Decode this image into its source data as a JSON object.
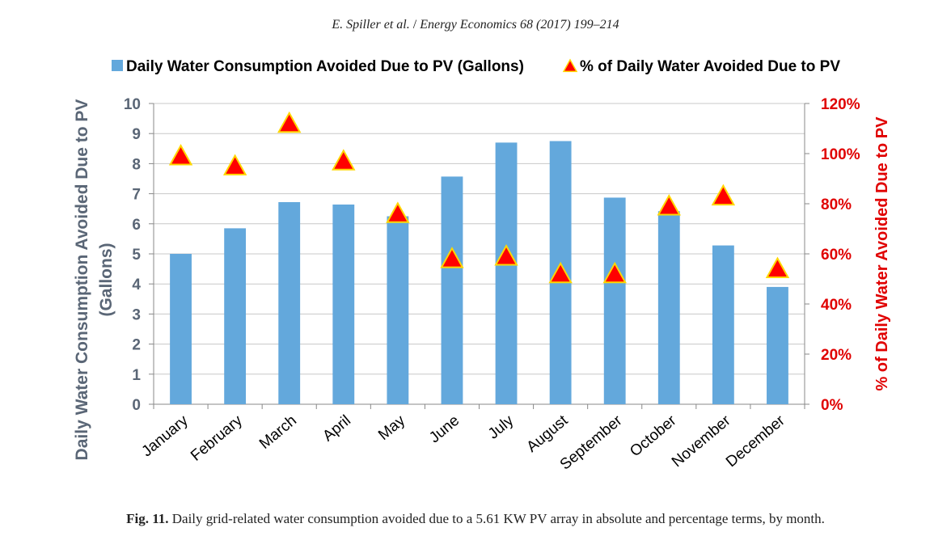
{
  "header": {
    "authors": "E. Spiller et al.",
    "separator": " / ",
    "journal": "Energy Economics 68 (2017) 199–214"
  },
  "caption": {
    "label": "Fig. 11.",
    "text": " Daily grid-related water consumption avoided due to a 5.61 KW PV array in absolute and percentage terms, by month."
  },
  "colors": {
    "bar": "#63a8dc",
    "marker": "#ff0000",
    "marker_edge": "#ffd700",
    "left_axis_text": "#5a6676",
    "right_axis_text": "#e00000",
    "grid": "#c8c8c8"
  },
  "chart_data": {
    "type": "bar",
    "categories": [
      "January",
      "February",
      "March",
      "April",
      "May",
      "June",
      "July",
      "August",
      "September",
      "October",
      "November",
      "December"
    ],
    "series": [
      {
        "name": "Daily Water Consumption Avoided Due to PV (Gallons)",
        "type": "bar",
        "axis": "left",
        "values": [
          5.0,
          5.85,
          6.72,
          6.64,
          6.25,
          7.57,
          8.7,
          8.75,
          6.87,
          6.42,
          5.28,
          3.9
        ]
      },
      {
        "name": "% of Daily Water Avoided Due to PV",
        "type": "scatter",
        "marker": "triangle",
        "axis": "right",
        "values": [
          99,
          95,
          112,
          97,
          76,
          58,
          59,
          52,
          52,
          79,
          83,
          54
        ]
      }
    ],
    "ylabel_left": [
      "Daily Water Consumption Avoided Due to PV",
      "(Gallons)"
    ],
    "ylabel_right": "% of Daily Water Avoided Due to PV",
    "ylim_left": [
      0,
      10
    ],
    "yticks_left": [
      "0",
      "1",
      "2",
      "3",
      "4",
      "5",
      "6",
      "7",
      "8",
      "9",
      "10"
    ],
    "ylim_right": [
      0,
      120
    ],
    "yticks_right": [
      "0%",
      "20%",
      "40%",
      "60%",
      "80%",
      "100%",
      "120%"
    ],
    "grid": true,
    "legend_position": "top"
  }
}
